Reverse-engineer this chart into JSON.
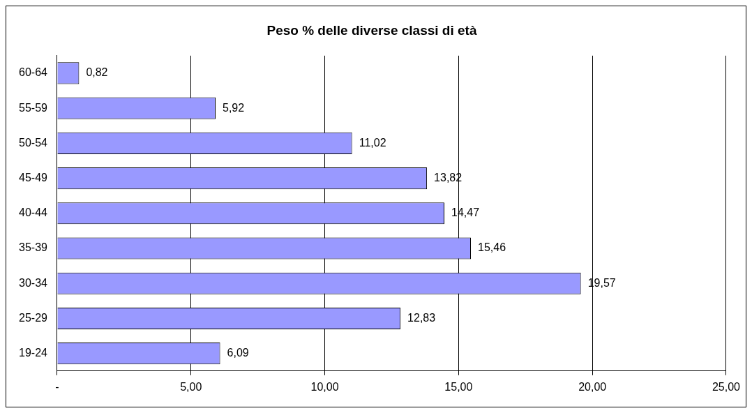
{
  "chart_data": {
    "type": "bar",
    "orientation": "horizontal",
    "title": "Peso % delle diverse classi di età",
    "categories": [
      "60-64",
      "55-59",
      "50-54",
      "45-49",
      "40-44",
      "35-39",
      "30-34",
      "25-29",
      "19-24"
    ],
    "values": [
      0.82,
      5.92,
      11.02,
      13.82,
      14.47,
      15.46,
      19.57,
      12.83,
      6.09
    ],
    "value_labels": [
      "0,82",
      "5,92",
      "11,02",
      "13,82",
      "14,47",
      "15,46",
      "19,57",
      "12,83",
      "6,09"
    ],
    "color": "#9999ff",
    "xlim": [
      0,
      25
    ],
    "xticks": [
      {
        "value": 0,
        "label": "-"
      },
      {
        "value": 5,
        "label": "5,00"
      },
      {
        "value": 10,
        "label": "10,00"
      },
      {
        "value": 15,
        "label": "15,00"
      },
      {
        "value": 20,
        "label": "20,00"
      },
      {
        "value": 25,
        "label": "25,00"
      }
    ],
    "grid": "x",
    "legend": false
  }
}
